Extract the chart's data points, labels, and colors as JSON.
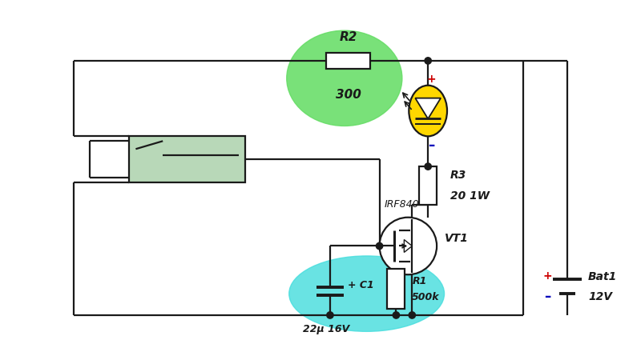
{
  "bg_color": "#ffffff",
  "line_color": "#1a1a1a",
  "green_fill": "#66dd66",
  "cyan_fill": "#44dddd",
  "led_fill": "#FFD700",
  "switch_fill": "#b8d8b8",
  "r2_label": "R2",
  "r2_val": "300",
  "r3_label": "R3",
  "r3_val": "20 1W",
  "r1_label": "R1",
  "r1_val": "500k",
  "c1_label": "+ C1",
  "c1_val": "22μ 16V",
  "mosfet_label": "IRF840",
  "mosfet_name": "VT1",
  "bat_label": "Bat1",
  "bat_val": "12V",
  "plus_color": "#cc0000",
  "minus_color": "#0000bb"
}
